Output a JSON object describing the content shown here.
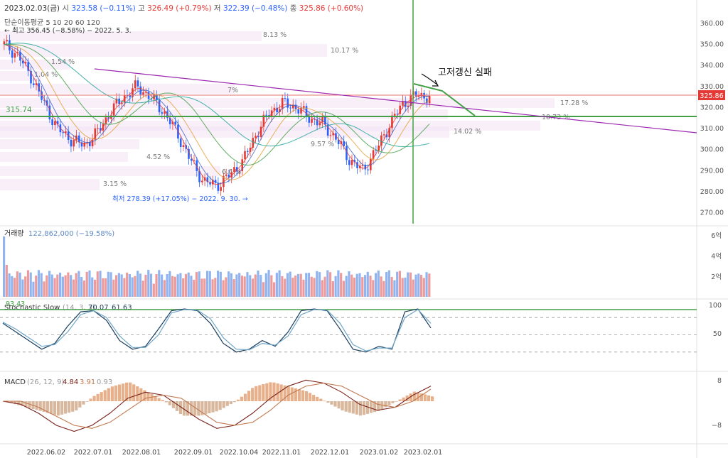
{
  "header": {
    "date": "2023.02.03(금)",
    "open_label": "시",
    "open_value": "323.58 (−0.11%)",
    "high_label": "고",
    "high_value": "326.49 (+0.79%)",
    "low_label": "저",
    "low_value": "322.39 (−0.48%)",
    "close_label": "종",
    "close_value": "325.86 (+0.60%)"
  },
  "ma_label": "단순이동평균 5 10 20 60 120",
  "high_note": "← 최고 356.45 (−8.58%) − 2022. 5. 3.",
  "low_note": "최저 278.39 (+17.05%) − 2022. 9. 30. →",
  "annotation": "고저갱신 실패",
  "price_tag": "325.86",
  "level_label": "315.74",
  "colors": {
    "up": "#e53935",
    "down": "#2962ff",
    "green_line": "#43a047",
    "purple_line": "#9c27b0",
    "volume_up": "#ef9a9a",
    "volume_down": "#90b4f0",
    "stoch_k": "#1a3d5c",
    "stoch_d": "#6fa6c8",
    "macd": "#7b241c",
    "signal": "#c0784e",
    "hist": "#e8b08a"
  },
  "chart_data": [
    {
      "type": "line",
      "title": "",
      "subtitle": "단순이동평균 5 10 20 60 120",
      "ylim": [
        265,
        365
      ],
      "y_ticks": [
        "360.00",
        "350.00",
        "340.00",
        "330.00",
        "320.00",
        "310.00",
        "300.00",
        "290.00",
        "280.00",
        "270.00"
      ],
      "x_ticks": [
        "2022.06.02",
        "2022.07.01",
        "2022.08.01",
        "2022.09.01",
        "2022.10.04",
        "2022.11.01",
        "2022.12.01",
        "2023.01.02",
        "2023.02.01"
      ],
      "series": [
        {
          "values": [
            350,
            345,
            335,
            322,
            310,
            305,
            302,
            308,
            318,
            325,
            330,
            325,
            318,
            308,
            295,
            285,
            283,
            288,
            295,
            308,
            318,
            322,
            320,
            315,
            312,
            305,
            295,
            290,
            300,
            312,
            322,
            326,
            325
          ]
        }
      ],
      "levels": [
        325.86,
        315.74
      ],
      "percent_labels": [
        "8.13 %",
        "10.17 %",
        "1.54 %",
        "1.04 %",
        "7%",
        "4.52 %",
        "3.15 %",
        "6.6 %",
        "9.57 %",
        "17.28 %",
        "18.73 %",
        "14.02 %"
      ]
    },
    {
      "type": "bar",
      "title": "거래량",
      "subtitle": "122,862,000 (−19.58%)",
      "y_ticks": [
        "6억",
        "4억",
        "2억"
      ],
      "note": "volume"
    },
    {
      "type": "line",
      "title": "Stochastic Slow",
      "subtitle": "(14, 3, 3)",
      "k_value": "70.07",
      "d_value": "61.63",
      "level": "93.43",
      "ylim": [
        0,
        100
      ],
      "y_ticks": [
        "100",
        "50"
      ],
      "series": [
        {
          "name": "%K",
          "values": [
            70,
            55,
            40,
            25,
            35,
            65,
            90,
            92,
            75,
            40,
            25,
            30,
            60,
            92,
            95,
            92,
            70,
            35,
            20,
            25,
            40,
            30,
            55,
            92,
            95,
            92,
            60,
            25,
            20,
            30,
            25,
            90,
            95,
            62
          ]
        },
        {
          "name": "%D",
          "values": [
            72,
            60,
            45,
            30,
            33,
            55,
            85,
            92,
            80,
            48,
            28,
            28,
            50,
            88,
            94,
            93,
            78,
            45,
            25,
            24,
            35,
            32,
            48,
            85,
            94,
            93,
            70,
            33,
            22,
            27,
            27,
            80,
            94,
            70
          ]
        }
      ]
    },
    {
      "type": "line",
      "title": "MACD",
      "subtitle": "(26, 12, 9)",
      "macd_value": "4.84",
      "signal_value": "3.91",
      "hist_value": "0.93",
      "ylim": [
        -12,
        8
      ],
      "y_ticks": [
        "8",
        "−8"
      ],
      "series": [
        {
          "name": "MACD",
          "values": [
            0,
            -1,
            -4,
            -8,
            -10,
            -8,
            -4,
            1,
            3,
            2,
            -2,
            -6,
            -9,
            -8,
            -4,
            1,
            5,
            7,
            6,
            3,
            -1,
            -3,
            -2,
            2,
            5
          ]
        },
        {
          "name": "Signal",
          "values": [
            0,
            0,
            -2,
            -5,
            -8,
            -9,
            -7,
            -3,
            1,
            2,
            1,
            -3,
            -7,
            -8,
            -7,
            -3,
            2,
            5,
            6,
            5,
            2,
            -1,
            -2,
            0,
            4
          ]
        }
      ]
    }
  ]
}
